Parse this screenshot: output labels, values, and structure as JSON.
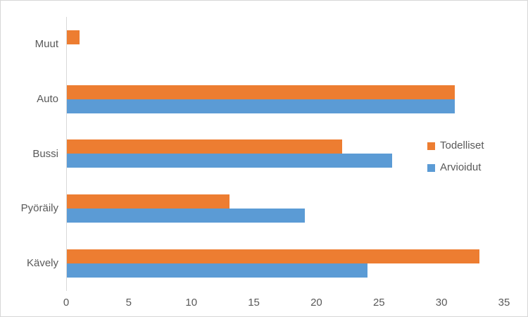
{
  "chart_data": {
    "type": "bar",
    "orientation": "horizontal",
    "categories": [
      "Muut",
      "Auto",
      "Bussi",
      "Pyöräily",
      "Kävely"
    ],
    "series": [
      {
        "name": "Todelliset",
        "color": "#ED7D31",
        "values": [
          1,
          31,
          22,
          13,
          33
        ]
      },
      {
        "name": "Arvioidut",
        "color": "#5B9BD5",
        "values": [
          0,
          31,
          26,
          19,
          24
        ]
      }
    ],
    "title": "",
    "xlabel": "",
    "ylabel": "",
    "xlim": [
      0,
      35
    ],
    "x_ticks": [
      0,
      5,
      10,
      15,
      20,
      25,
      30,
      35
    ],
    "grid": "off",
    "legend_position": "right",
    "axis_text_color": "#595959",
    "axis_line_color": "#D9D9D9",
    "background_color": "#FFFFFF"
  }
}
